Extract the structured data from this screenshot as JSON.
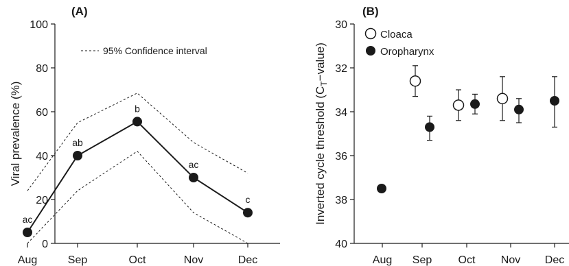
{
  "chart_data": [
    {
      "panel": "(A)",
      "type": "line",
      "categories": [
        "Aug",
        "Sep",
        "Oct",
        "Nov",
        "Dec"
      ],
      "ylabel": "Viral prevalence (%)",
      "ylim": [
        0,
        100
      ],
      "yticks": [
        0,
        20,
        40,
        60,
        80,
        100
      ],
      "series": [
        {
          "values": [
            5,
            40,
            55.5,
            30,
            14
          ],
          "labels": [
            "ac",
            "ab",
            "b",
            "ac",
            "c"
          ],
          "style": "solid with filled markers"
        },
        {
          "values": [
            24,
            55,
            68.5,
            46,
            32
          ],
          "style": "dashed upper bound"
        },
        {
          "values": [
            0,
            24,
            42,
            14,
            0
          ],
          "style": "dashed lower bound"
        }
      ],
      "legend": {
        "label": "95% Confidence interval",
        "position": "top"
      }
    },
    {
      "panel": "(B)",
      "type": "scatter",
      "categories": [
        "Aug",
        "Sep",
        "Oct",
        "Nov",
        "Dec"
      ],
      "ylabel_main": "Inverted cycle threshold (C",
      "ylabel_sub": "T",
      "ylabel_end": "−value)",
      "ylim": [
        30,
        40
      ],
      "inverted": true,
      "yticks": [
        30,
        32,
        34,
        36,
        38,
        40
      ],
      "legend_position": "top-left",
      "series": [
        {
          "name": "Cloaca",
          "marker": "open",
          "points": [
            {
              "x": "Sep",
              "y": 32.6,
              "lo": 31.9,
              "hi": 33.3
            },
            {
              "x": "Oct",
              "y": 33.7,
              "lo": 33.0,
              "hi": 34.4
            },
            {
              "x": "Nov",
              "y": 33.4,
              "lo": 32.4,
              "hi": 34.4
            }
          ]
        },
        {
          "name": "Oropharynx",
          "marker": "filled",
          "points": [
            {
              "x": "Aug",
              "y": 37.5
            },
            {
              "x": "Sep",
              "y": 34.7,
              "lo": 34.2,
              "hi": 35.3
            },
            {
              "x": "Oct",
              "y": 33.65,
              "lo": 33.2,
              "hi": 34.1
            },
            {
              "x": "Nov",
              "y": 33.9,
              "lo": 33.4,
              "hi": 34.5
            },
            {
              "x": "Dec",
              "y": 33.5,
              "lo": 32.4,
              "hi": 34.7
            }
          ]
        }
      ]
    }
  ]
}
